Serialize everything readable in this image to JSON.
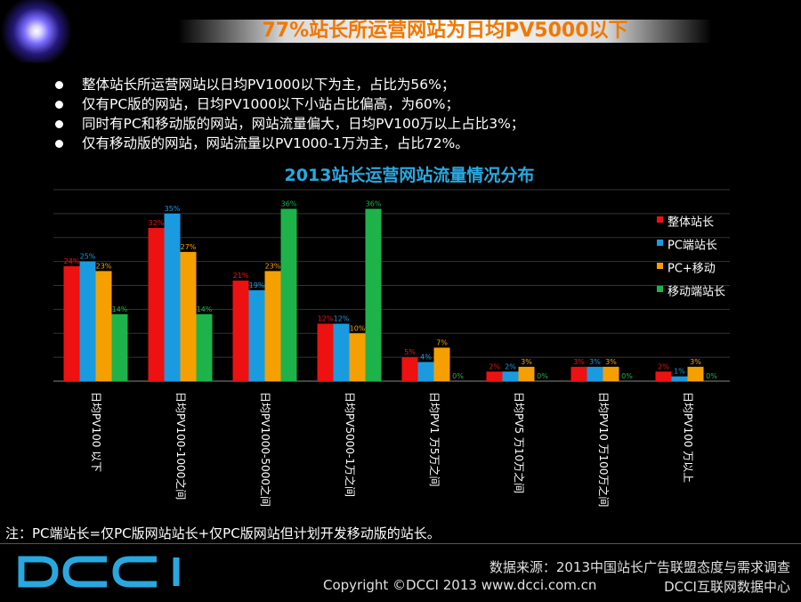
{
  "title": "77%站长所运营网站为日均PV5000以下",
  "bullets": [
    "整体站长所运营网站以日均PV1000以下为主，占比为56%；",
    "仅有PC版的网站，日均PV1000以下小站占比偏高，为60%；",
    "同时有PC和移动版的网站，网站流量偏大，日均PV100万以上占比3%；",
    "仅有移动版的网站，网站流量以PV1000-1万为主，占比72%。"
  ],
  "note": "注：PC端站长=仅PC版网站站长+仅PC版网站但计划开发移动版的站长。",
  "footer": {
    "logo": "DCCI",
    "source": "数据来源：2013中国站长广告联盟态度与需求调查",
    "copyright": "Copyright ©DCCI 2013 www.dcci.com.cn",
    "center": "DCCI互联网数据中心"
  },
  "colors": {
    "title": "#f07800",
    "chart_title": "#29a8e0",
    "logo": "#29a8e0"
  },
  "chart_data": {
    "type": "bar",
    "title": "2013站长运营网站流量情况分布",
    "categories": [
      "日均PV100 以下",
      "日均PV100-1000之间",
      "日均PV1000-5000之间",
      "日均PV5000-1万之间",
      "日均PV1 万5万之间",
      "日均PV5 万10万之间",
      "日均PV10 万100万之间",
      "日均PV100 万以上"
    ],
    "ylim": [
      0,
      40
    ],
    "grid": true,
    "legend_position": "right",
    "series": [
      {
        "name": "整体站长",
        "color": "#ee1111",
        "values": [
          24,
          32,
          21,
          12,
          5,
          2,
          3,
          2
        ],
        "labels": [
          "24%",
          "32%",
          "21%",
          "12%",
          "5%",
          "2%",
          "3%",
          "2%"
        ]
      },
      {
        "name": "PC端站长",
        "color": "#1a9be0",
        "values": [
          25,
          35,
          19,
          12,
          4,
          2,
          3,
          1
        ],
        "labels": [
          "25%",
          "35%",
          "19%",
          "12%",
          "4%",
          "2%",
          "3%",
          "1%"
        ]
      },
      {
        "name": "PC+移动",
        "color": "#f5a000",
        "values": [
          23,
          27,
          23,
          10,
          7,
          3,
          3,
          3
        ],
        "labels": [
          "23%",
          "27%",
          "23%",
          "10%",
          "7%",
          "3%",
          "3%",
          "3%"
        ]
      },
      {
        "name": "移动端站长",
        "color": "#1db34a",
        "values": [
          14,
          14,
          36,
          36,
          0,
          0,
          0,
          0
        ],
        "labels": [
          "14%",
          "14%",
          "36%",
          "36%",
          "0%",
          "0%",
          "0%",
          "0%"
        ]
      }
    ]
  }
}
